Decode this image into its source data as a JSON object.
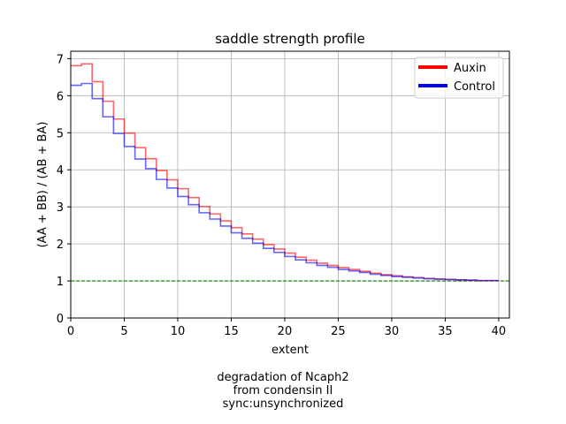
{
  "chart_data": {
    "type": "line",
    "drawstyle": "steps-post",
    "title": "saddle strength profile",
    "xlabel": "extent",
    "ylabel": "(AA + BB) / (AB + BA)",
    "xlim": [
      0,
      41
    ],
    "ylim": [
      0,
      7.2
    ],
    "xticks": [
      0,
      5,
      10,
      15,
      20,
      25,
      30,
      35,
      40
    ],
    "yticks": [
      0,
      1,
      2,
      3,
      4,
      5,
      6,
      7
    ],
    "grid": true,
    "legend_position": "top-right",
    "reference_line": {
      "y": 1,
      "color": "#008000",
      "style": "dashed"
    },
    "x": [
      0,
      1,
      2,
      3,
      4,
      5,
      6,
      7,
      8,
      9,
      10,
      11,
      12,
      13,
      14,
      15,
      16,
      17,
      18,
      19,
      20,
      21,
      22,
      23,
      24,
      25,
      26,
      27,
      28,
      29,
      30,
      31,
      32,
      33,
      34,
      35,
      36,
      37,
      38,
      39
    ],
    "series": [
      {
        "name": "Auxin",
        "color": "#ff0000",
        "values": [
          6.81,
          6.86,
          6.38,
          5.85,
          5.37,
          4.99,
          4.6,
          4.3,
          3.98,
          3.73,
          3.49,
          3.25,
          3.01,
          2.81,
          2.62,
          2.44,
          2.27,
          2.13,
          1.98,
          1.86,
          1.75,
          1.64,
          1.56,
          1.48,
          1.42,
          1.36,
          1.31,
          1.26,
          1.21,
          1.17,
          1.14,
          1.11,
          1.09,
          1.07,
          1.05,
          1.04,
          1.03,
          1.02,
          1.01,
          1.01
        ]
      },
      {
        "name": "Control",
        "color": "#0000ff",
        "values": [
          6.28,
          6.33,
          5.92,
          5.43,
          4.98,
          4.63,
          4.29,
          4.03,
          3.74,
          3.51,
          3.28,
          3.06,
          2.84,
          2.67,
          2.48,
          2.3,
          2.15,
          2.02,
          1.88,
          1.77,
          1.66,
          1.57,
          1.49,
          1.42,
          1.37,
          1.31,
          1.27,
          1.23,
          1.18,
          1.15,
          1.12,
          1.1,
          1.08,
          1.06,
          1.05,
          1.04,
          1.03,
          1.02,
          1.01,
          1.01
        ]
      }
    ]
  },
  "caption": {
    "line1": "degradation of Ncaph2",
    "line2": "from condensin II",
    "line3": "sync:unsynchronized"
  }
}
